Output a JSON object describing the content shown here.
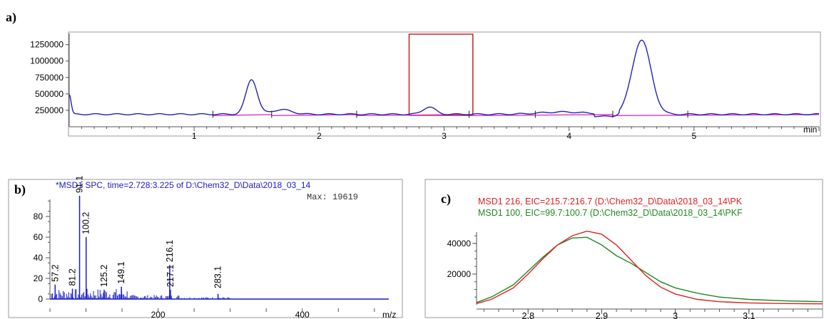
{
  "chart_data": [
    {
      "panel_label": "a)",
      "type": "line",
      "xlabel": "min",
      "x_ticks": [
        "1",
        "2",
        "3",
        "4",
        "5"
      ],
      "y_ticks": [
        "250000",
        "500000",
        "750000",
        "1000000",
        "1250000"
      ],
      "xlim": [
        0,
        6.0
      ],
      "ylim": [
        0,
        1420000
      ],
      "baseline": 190000,
      "peaks": [
        {
          "x": 1.46,
          "y": 720000
        },
        {
          "x": 1.7,
          "y": 260000
        },
        {
          "x": 2.88,
          "y": 300000
        },
        {
          "x": 4.58,
          "y": 1320000
        }
      ],
      "highlight_range": [
        2.72,
        3.23
      ],
      "grid": false,
      "series_colors": [
        "#2222bb",
        "#dd33cc"
      ]
    },
    {
      "panel_label": "b)",
      "type": "bar",
      "title": "*MSD1 SPC, time=2.728:3.225 of D:\\Chem32_D\\Data\\2018_03_14",
      "annotation": "Max: 19619",
      "xlabel": "m/z",
      "x_ticks": [
        "200",
        "400"
      ],
      "y_ticks": [
        "0",
        "20",
        "40",
        "60",
        "80"
      ],
      "xlim": [
        50,
        520
      ],
      "ylim": [
        0,
        100
      ],
      "peaks": [
        {
          "mz": 57.2,
          "intensity": 14
        },
        {
          "mz": 81.2,
          "intensity": 10
        },
        {
          "mz": 91.1,
          "intensity": 100
        },
        {
          "mz": 100.2,
          "intensity": 60
        },
        {
          "mz": 125.2,
          "intensity": 9
        },
        {
          "mz": 149.1,
          "intensity": 12
        },
        {
          "mz": 216.1,
          "intensity": 33
        },
        {
          "mz": 217.1,
          "intensity": 9
        },
        {
          "mz": 283.1,
          "intensity": 5
        }
      ],
      "peak_labels": [
        "57.2",
        "81.2",
        "91.1",
        "100.2",
        "125.2",
        "149.1",
        "216.1",
        "217.1",
        "283.1"
      ],
      "line_color": "#1a1acc"
    },
    {
      "panel_label": "c)",
      "type": "line",
      "x_ticks": [
        "2.8",
        "2.9",
        "3",
        "3.1"
      ],
      "y_ticks": [
        "20000",
        "40000"
      ],
      "xlim": [
        2.73,
        3.2
      ],
      "ylim": [
        0,
        52000
      ],
      "series": [
        {
          "name": "MSD1 216, EIC=215.7:216.7 (D:\\Chem32_D\\Data\\2018_03_14\\PK",
          "color": "#dd2222",
          "x": [
            2.73,
            2.75,
            2.78,
            2.8,
            2.82,
            2.84,
            2.86,
            2.88,
            2.9,
            2.92,
            2.94,
            2.96,
            2.98,
            3.0,
            3.03,
            3.06,
            3.1,
            3.15,
            3.2
          ],
          "y": [
            800,
            3500,
            11000,
            20000,
            30000,
            39000,
            45000,
            48000,
            46000,
            39000,
            29000,
            19000,
            11500,
            7000,
            3500,
            2000,
            1200,
            800,
            600
          ]
        },
        {
          "name": "MSD1 100, EIC=99.7:100.7 (D:\\Chem32_D\\Data\\2018_03_14\\PKF",
          "color": "#228822",
          "x": [
            2.73,
            2.75,
            2.78,
            2.8,
            2.82,
            2.84,
            2.86,
            2.88,
            2.9,
            2.92,
            2.94,
            2.96,
            2.98,
            3.0,
            3.03,
            3.06,
            3.1,
            3.15,
            3.2
          ],
          "y": [
            1500,
            5000,
            13000,
            22000,
            31000,
            39000,
            43500,
            44000,
            39000,
            32000,
            27000,
            21000,
            15000,
            11000,
            7500,
            5000,
            3500,
            2500,
            2000
          ]
        }
      ]
    }
  ]
}
